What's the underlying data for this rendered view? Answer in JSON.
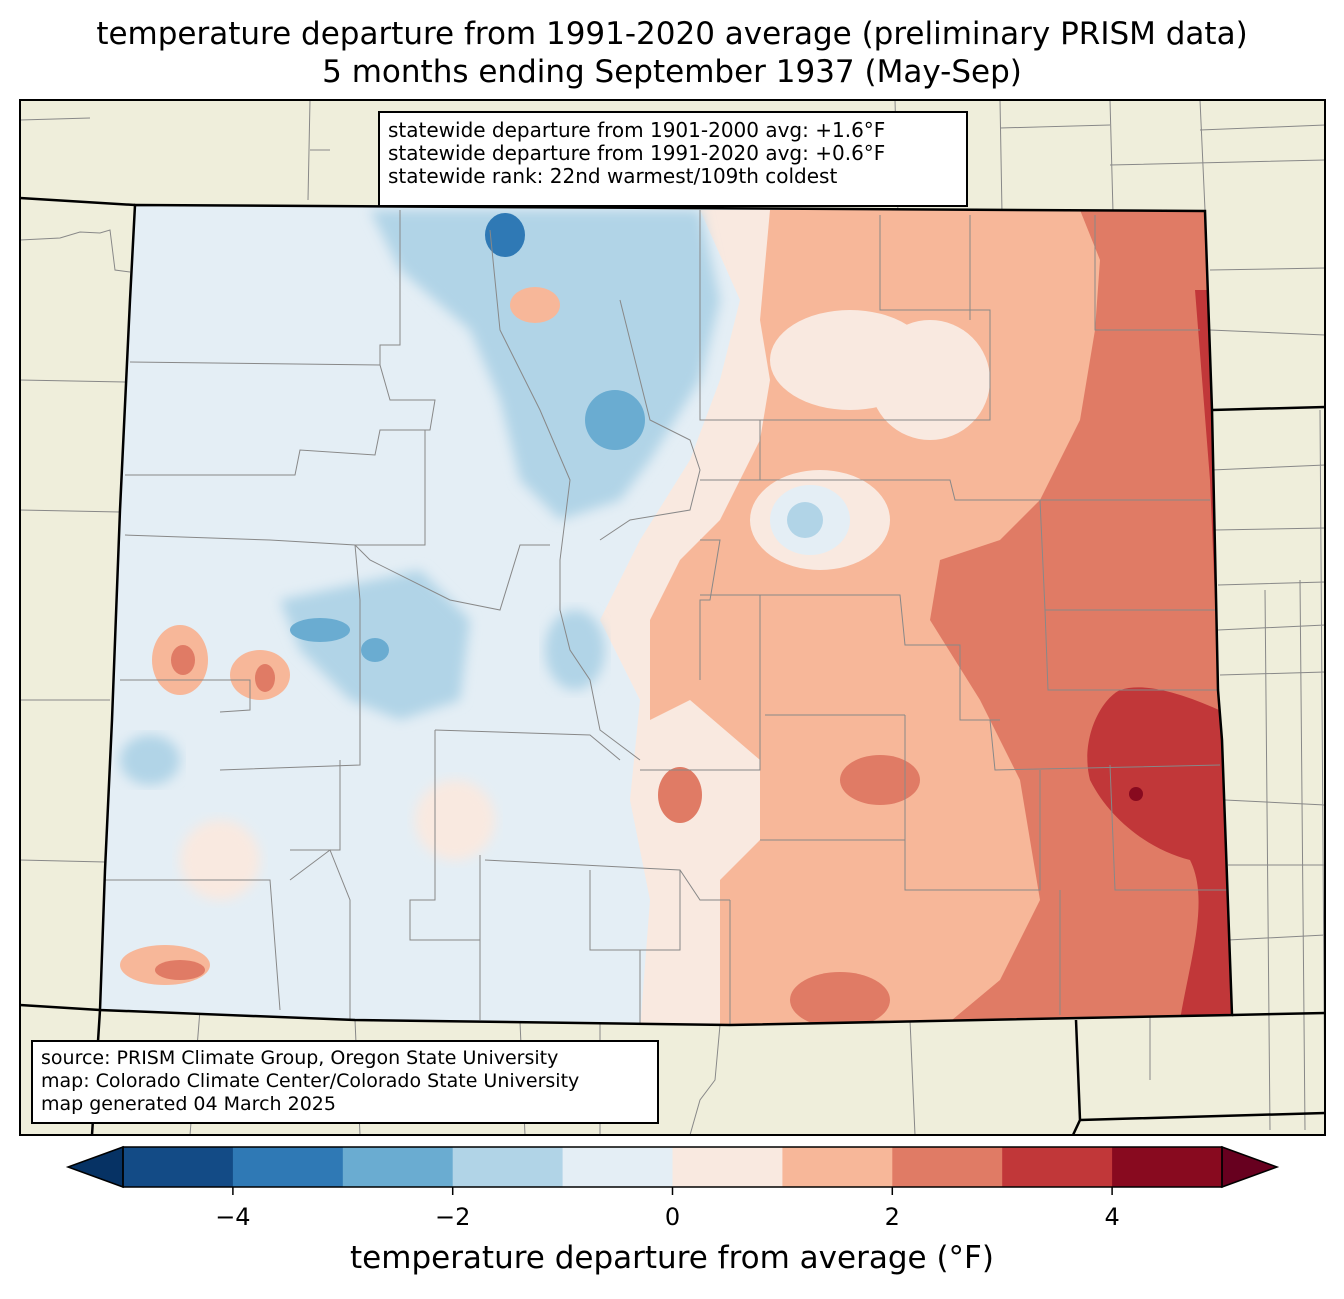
{
  "title": {
    "line1": "temperature departure from 1991-2020 average (preliminary PRISM data)",
    "line2": "5 months ending September 1937 (May-Sep)"
  },
  "stats": {
    "line1": "statewide departure from 1901-2000 avg: +1.6°F",
    "line2": "statewide departure from 1991-2020 avg: +0.6°F",
    "line3": "statewide rank: 22nd warmest/109th coldest"
  },
  "source": {
    "line1": "source: PRISM Climate Group, Oregon State University",
    "line2": "map: Colorado Climate Center/Colorado State University",
    "line3": "map generated 04 March 2025"
  },
  "colorbar": {
    "label": "temperature departure from average (°F)",
    "range": [
      -5,
      5
    ],
    "bins": [
      {
        "from": -5,
        "to": -4,
        "color": "#134b86"
      },
      {
        "from": -4,
        "to": -3,
        "color": "#2f79b5"
      },
      {
        "from": -3,
        "to": -2,
        "color": "#6aacd1"
      },
      {
        "from": -2,
        "to": -1,
        "color": "#b1d4e7"
      },
      {
        "from": -1,
        "to": 0,
        "color": "#e4eef5"
      },
      {
        "from": 0,
        "to": 1,
        "color": "#f9e9e0"
      },
      {
        "from": 1,
        "to": 2,
        "color": "#f7b799"
      },
      {
        "from": 2,
        "to": 3,
        "color": "#e07b65"
      },
      {
        "from": 3,
        "to": 4,
        "color": "#c13739"
      },
      {
        "from": 4,
        "to": 5,
        "color": "#880a1f"
      }
    ],
    "under_color": "#063264",
    "over_color": "#67001f",
    "ticks": [
      {
        "value": -4,
        "label": "−4"
      },
      {
        "value": -2,
        "label": "−2"
      },
      {
        "value": 0,
        "label": "0"
      },
      {
        "value": 2,
        "label": "2"
      },
      {
        "value": 4,
        "label": "4"
      }
    ]
  },
  "colors": {
    "land": "#efeedb",
    "state_border": "#000000",
    "county_border": "#888888"
  }
}
